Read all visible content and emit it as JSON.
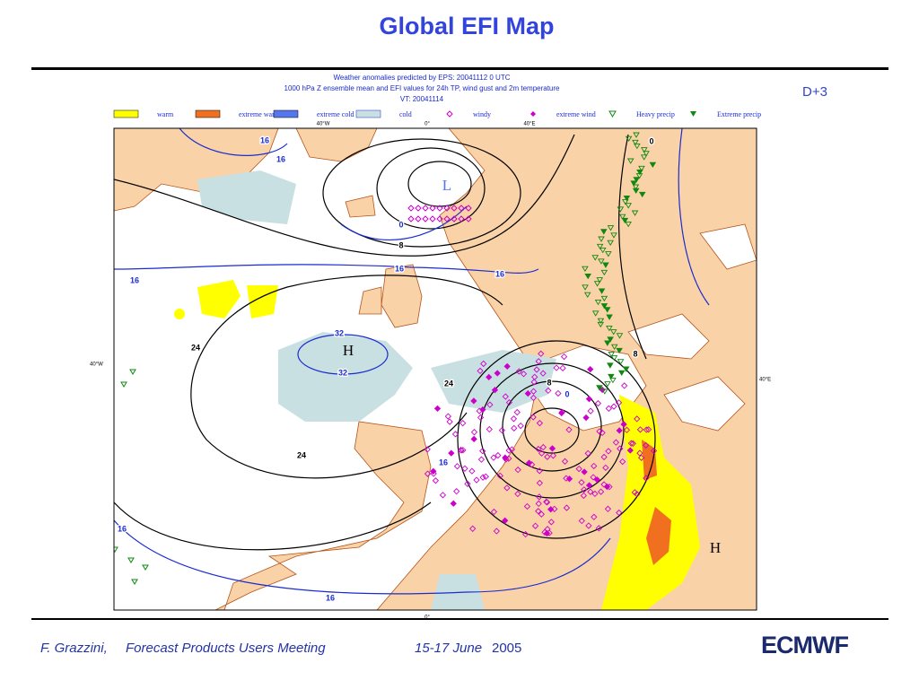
{
  "title": "Global EFI Map",
  "forecast_step": "D+3",
  "map": {
    "header": [
      "Weather anomalies predicted by EPS: 20041112 0 UTC",
      "1000 hPa Z ensemble mean and EFI values for 24h TP, wind gust and 2m temperature",
      "VT: 20041114"
    ],
    "legend": [
      "warm",
      "extreme warm",
      "extreme cold",
      "cold",
      "windy",
      "extreme wind",
      "Heavy precip",
      "Extreme precip"
    ],
    "top_axis_labels": [
      "40°W",
      "0°",
      "40°E"
    ],
    "side_axis_labels": [
      "40°W",
      "40°E"
    ],
    "bottom_axis_label": "0°",
    "pressure_centers": [
      "L",
      "H",
      "H"
    ],
    "contour_labels": [
      16,
      16,
      0,
      8,
      16,
      16,
      16,
      32,
      24,
      32,
      24,
      8,
      0,
      16,
      24,
      16,
      16,
      8,
      0
    ]
  },
  "footer": {
    "author": "F. Grazzini,",
    "event": "Forecast Products Users Meeting",
    "dates": "15-17 June",
    "year": "2005",
    "logo": "ECMWF"
  }
}
